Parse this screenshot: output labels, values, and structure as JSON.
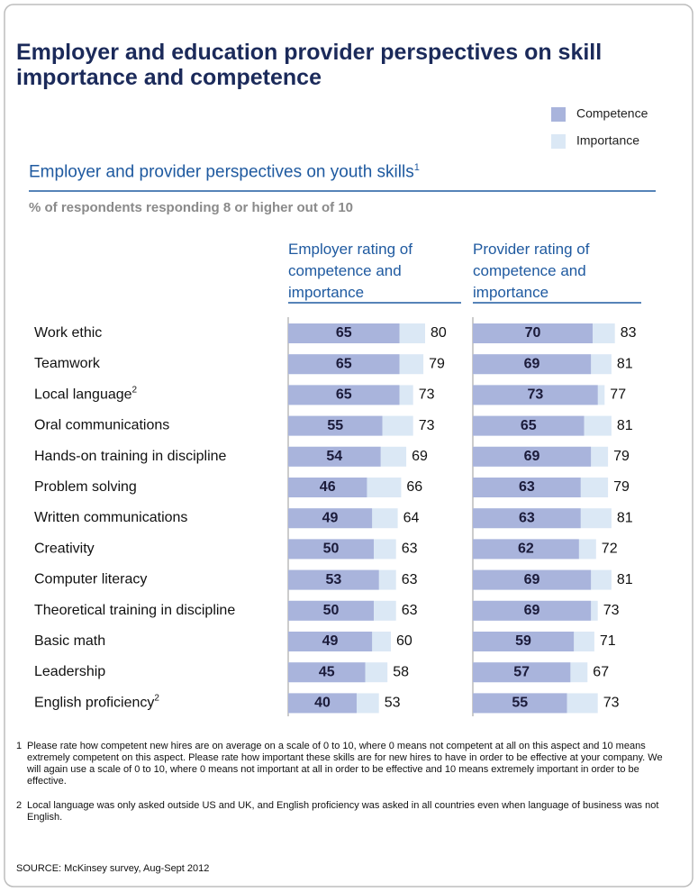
{
  "chart_data": {
    "type": "bar",
    "title": "Employer and education provider perspectives on skill importance and competence",
    "subtitle": "Employer and provider perspectives on youth skills",
    "subtitle_note": "1",
    "axis_label": "% of respondents responding 8 or higher out of 10",
    "categories": [
      "Work ethic",
      "Teamwork",
      "Local language",
      "Oral communications",
      "Hands-on training in discipline",
      "Problem solving",
      "Written communications",
      "Creativity",
      "Computer literacy",
      "Theoretical training in discipline",
      "Basic math",
      "Leadership",
      "English proficiency"
    ],
    "category_notes": [
      null,
      null,
      "2",
      null,
      null,
      null,
      null,
      null,
      null,
      null,
      null,
      null,
      "2"
    ],
    "panels": [
      {
        "title": "Employer rating of competence and importance",
        "series": [
          {
            "name": "Competence",
            "color": "#a9b4dc",
            "values": [
              65,
              65,
              65,
              55,
              54,
              46,
              49,
              50,
              53,
              50,
              49,
              45,
              40
            ]
          },
          {
            "name": "Importance",
            "color": "#dbe8f5",
            "values": [
              80,
              79,
              73,
              73,
              69,
              66,
              64,
              63,
              63,
              63,
              60,
              58,
              53
            ]
          }
        ]
      },
      {
        "title": "Provider rating of competence and importance",
        "series": [
          {
            "name": "Competence",
            "color": "#a9b4dc",
            "values": [
              70,
              69,
              73,
              65,
              69,
              63,
              63,
              62,
              69,
              69,
              59,
              57,
              55
            ]
          },
          {
            "name": "Importance",
            "color": "#dbe8f5",
            "values": [
              83,
              81,
              77,
              81,
              79,
              79,
              81,
              72,
              81,
              73,
              71,
              67,
              73
            ]
          }
        ]
      }
    ],
    "footnotes": [
      {
        "number": "1",
        "text": "Please rate how competent new hires are on average on a scale of 0 to 10, where 0 means not competent at all on this aspect and 10 means extremely competent on this aspect. Please rate how important these skills are for new hires to have in order to be effective at your company. We will again use a scale of 0 to 10, where 0 means not important at all in order to be effective and 10 means extremely important in order to be effective."
      },
      {
        "number": "2",
        "text": "Local language was only asked outside US and UK, and English proficiency was asked in all countries even when language of business was not English."
      }
    ],
    "source": "SOURCE: McKinsey survey, Aug-Sept 2012"
  }
}
